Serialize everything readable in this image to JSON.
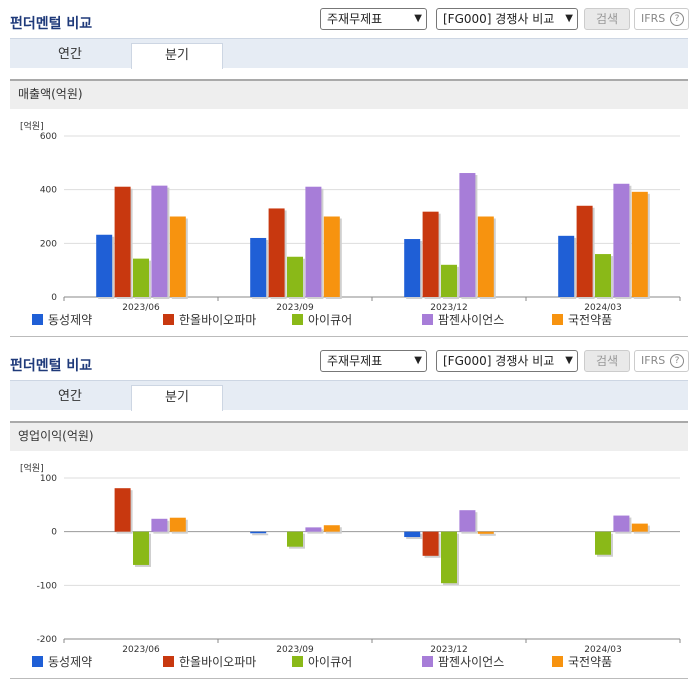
{
  "panels": [
    {
      "header": {
        "title": "펀더멘털 비교",
        "select1": "주재무제표",
        "select2": "[FG000] 경쟁사 비교",
        "search_label": "검색",
        "ifrs_label": "IFRS",
        "help_label": "?"
      },
      "tabs": [
        {
          "label": "연간"
        },
        {
          "label": "분기"
        }
      ],
      "section_title": "매출액(억원)",
      "unit": "[억원]"
    },
    {
      "header": {
        "title": "펀더멘털 비교",
        "select1": "주재무제표",
        "select2": "[FG000] 경쟁사 비교",
        "search_label": "검색",
        "ifrs_label": "IFRS",
        "help_label": "?"
      },
      "tabs": [
        {
          "label": "연간"
        },
        {
          "label": "분기"
        }
      ],
      "section_title": "영업이익(억원)",
      "unit": "[억원]"
    }
  ],
  "chart_data": [
    {
      "type": "bar",
      "title": "매출액(억원)",
      "ylabel": "[억원]",
      "categories": [
        "2023/06",
        "2023/09",
        "2023/12",
        "2024/03"
      ],
      "ylim": [
        0,
        600
      ],
      "yticks": [
        0,
        200,
        400,
        600
      ],
      "grid": true,
      "legend_position": "bottom",
      "series": [
        {
          "name": "동성제약",
          "color": "#1f5fd6",
          "values": [
            232,
            220,
            216,
            228
          ]
        },
        {
          "name": "한올바이오파마",
          "color": "#c8380f",
          "values": [
            411,
            330,
            318,
            340
          ]
        },
        {
          "name": "아이큐어",
          "color": "#8ab918",
          "values": [
            143,
            150,
            120,
            160
          ]
        },
        {
          "name": "팜젠사이언스",
          "color": "#a77dd8",
          "values": [
            415,
            411,
            462,
            422
          ]
        },
        {
          "name": "국전약품",
          "color": "#f7930f",
          "values": [
            300,
            300,
            300,
            392
          ]
        }
      ]
    },
    {
      "type": "bar",
      "title": "영업이익(억원)",
      "ylabel": "[억원]",
      "categories": [
        "2023/06",
        "2023/09",
        "2023/12",
        "2024/03"
      ],
      "ylim": [
        -200,
        100
      ],
      "yticks": [
        -200,
        -100,
        0,
        100
      ],
      "grid": true,
      "legend_position": "bottom",
      "series": [
        {
          "name": "동성제약",
          "color": "#1f5fd6",
          "values": [
            0,
            -3,
            -10,
            0
          ]
        },
        {
          "name": "한올바이오파마",
          "color": "#c8380f",
          "values": [
            81,
            0,
            -45,
            0
          ]
        },
        {
          "name": "아이큐어",
          "color": "#8ab918",
          "values": [
            -62,
            -28,
            -96,
            -43
          ]
        },
        {
          "name": "팜젠사이언스",
          "color": "#a77dd8",
          "values": [
            24,
            8,
            40,
            30
          ]
        },
        {
          "name": "국전약품",
          "color": "#f7930f",
          "values": [
            26,
            12,
            -4,
            15
          ]
        }
      ]
    }
  ]
}
